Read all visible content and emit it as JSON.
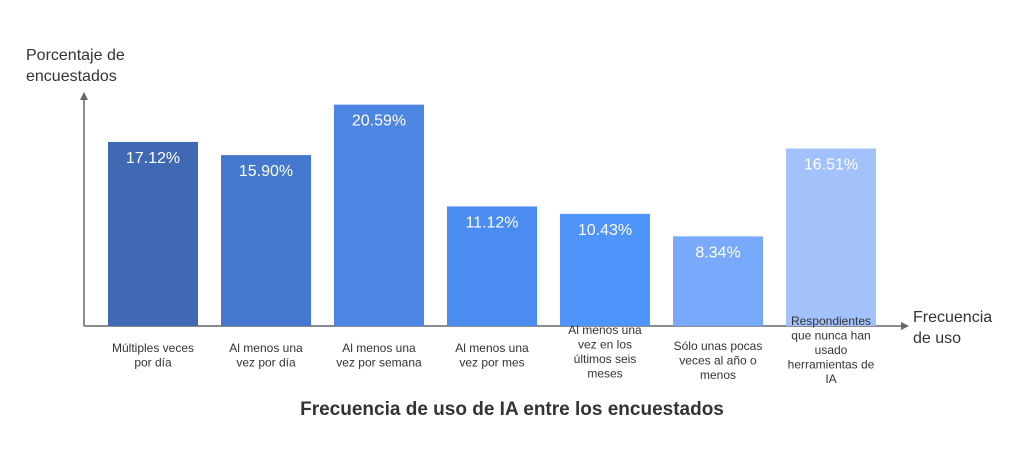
{
  "chart_data": {
    "type": "bar",
    "title": "Frecuencia de uso de IA entre los encuestados",
    "xlabel": "Frecuencia de uso",
    "ylabel": "Porcentaje de encuestados",
    "categories": [
      "Múltiples veces por día",
      "Al menos una vez por día",
      "Al menos una vez por semana",
      "Al menos una vez por mes",
      "Al menos una vez en los últimos seis meses",
      "Sólo unas pocas veces al año o menos",
      "Respondientes que nunca han usado herramientas de IA"
    ],
    "values": [
      17.12,
      15.9,
      20.59,
      11.12,
      10.43,
      8.34,
      16.51
    ],
    "value_labels": [
      "17.12%",
      "15.90%",
      "20.59%",
      "11.12%",
      "10.43%",
      "8.34%",
      "16.51%"
    ],
    "category_lines": [
      [
        "Múltiples veces",
        "por día"
      ],
      [
        "Al menos una",
        "vez por día"
      ],
      [
        "Al menos una",
        "vez por semana"
      ],
      [
        "Al menos una",
        "vez por mes"
      ],
      [
        "Al menos una",
        "vez en los",
        "últimos seis",
        "meses"
      ],
      [
        "Sólo unas pocas",
        "veces al año o",
        "menos"
      ],
      [
        "Respondientes",
        "que nunca han",
        "usado",
        "herramientas de",
        "IA"
      ]
    ],
    "colors": [
      "#3f69b3",
      "#4478cf",
      "#4d85e3",
      "#4a8cf0",
      "#4f94fb",
      "#79a9fb",
      "#a3c2fb"
    ],
    "ylim": [
      0,
      22
    ],
    "grid": false,
    "legend": "none"
  }
}
